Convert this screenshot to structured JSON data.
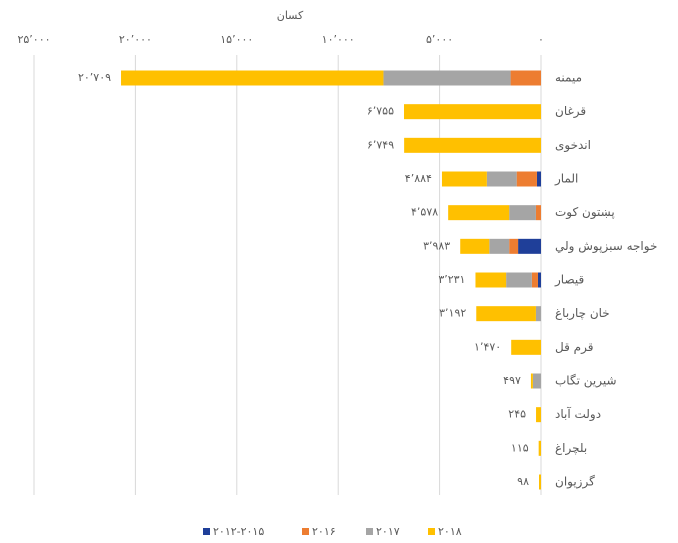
{
  "chart_data": {
    "type": "stacked_barh",
    "x_label": "کسان",
    "categories": [
      "میمنه",
      "قرغان",
      "اندخوی",
      "المار",
      "پښتون کوت",
      "خواجه سبزپوش ولي",
      "قیصار",
      "خان چارباغ",
      "قرم قل",
      "شیرین تگاب",
      "دولت آباد",
      "بلچراغ",
      "گرزیوان"
    ],
    "series": [
      {
        "name": "۲۰۱۲-۲۰۱۵",
        "color": "#1f3f99",
        "values": [
          0,
          0,
          0,
          200,
          0,
          1130,
          150,
          0,
          0,
          0,
          0,
          0,
          0
        ]
      },
      {
        "name": "۲۰۱۶",
        "color": "#ed7d31",
        "values": [
          1500,
          0,
          0,
          1000,
          250,
          440,
          300,
          0,
          0,
          0,
          0,
          0,
          0
        ]
      },
      {
        "name": "۲۰۱۷",
        "color": "#a5a5a5",
        "values": [
          6270,
          0,
          0,
          1470,
          1320,
          980,
          1270,
          250,
          0,
          400,
          0,
          0,
          0
        ]
      },
      {
        "name": "۲۰۱۸",
        "color": "#ffc000",
        "values": [
          12939,
          6755,
          6749,
          2214,
          3008,
          1433,
          1511,
          2942,
          1470,
          97,
          245,
          115,
          98
        ]
      }
    ],
    "totals": [
      20709,
      6755,
      6749,
      4884,
      4578,
      3983,
      3231,
      3192,
      1470,
      497,
      245,
      115,
      98
    ],
    "total_labels": [
      "۲۰٬۷۰۹",
      "۶٬۷۵۵",
      "۶٬۷۴۹",
      "۴٬۸۸۴",
      "۴٬۵۷۸",
      "۳٬۹۸۳",
      "۳٬۲۳۱",
      "۳٬۱۹۲",
      "۱٬۴۷۰",
      "۴۹۷",
      "۲۴۵",
      "۱۱۵",
      "۹۸"
    ],
    "xlim": [
      0,
      25000
    ],
    "xticks": [
      {
        "value": 0,
        "label": "۰"
      },
      {
        "value": 5000,
        "label": "۵٬۰۰۰"
      },
      {
        "value": 10000,
        "label": "۱۰٬۰۰۰"
      },
      {
        "value": 15000,
        "label": "۱۵٬۰۰۰"
      },
      {
        "value": 20000,
        "label": "۲۰٬۰۰۰"
      },
      {
        "value": 25000,
        "label": "۲۵٬۰۰۰"
      }
    ],
    "x_reversed": true,
    "grid": true,
    "legend": "bottom"
  }
}
